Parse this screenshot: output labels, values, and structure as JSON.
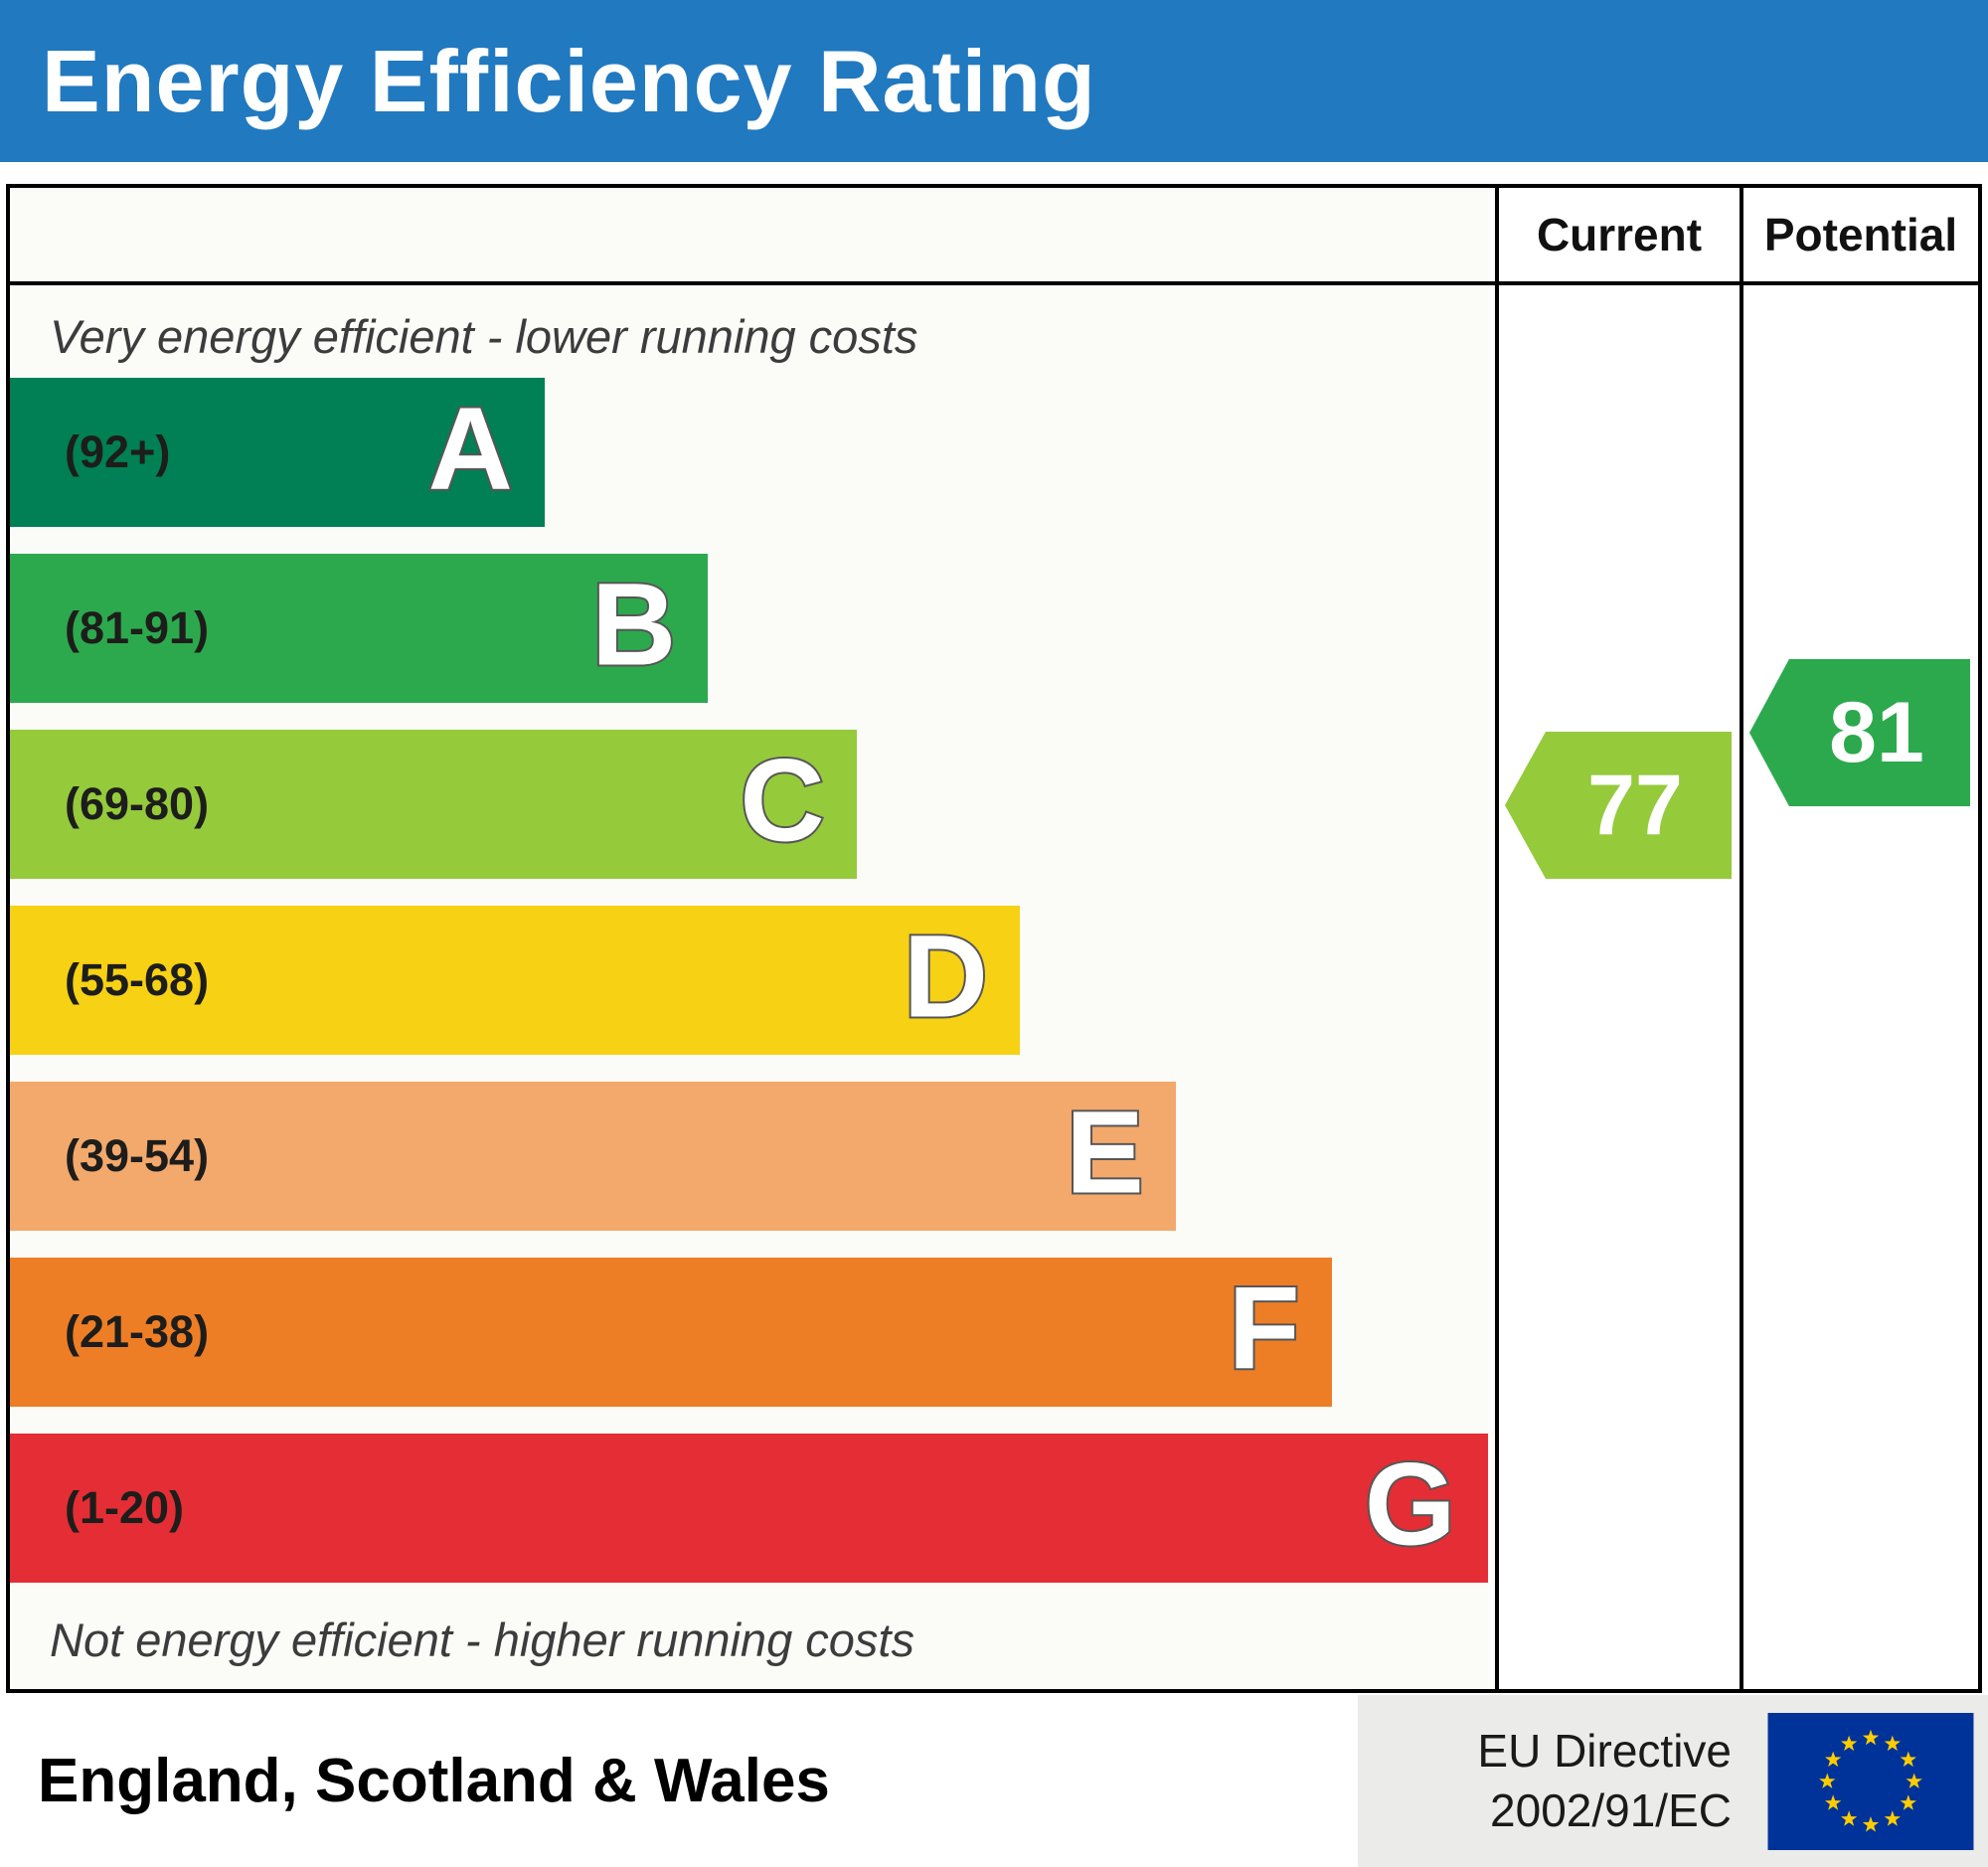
{
  "header": {
    "title": "Energy Efficiency Rating"
  },
  "table": {
    "current_label": "Current",
    "potential_label": "Potential",
    "top_note": "Very energy efficient - lower running costs",
    "bottom_note": "Not energy efficient - higher running costs"
  },
  "bands": [
    {
      "letter": "A",
      "range": "(92+)",
      "color": "#008054",
      "width_pct": 36
    },
    {
      "letter": "B",
      "range": "(81-91)",
      "color": "#2ca94d",
      "width_pct": 47
    },
    {
      "letter": "C",
      "range": "(69-80)",
      "color": "#95ca3b",
      "width_pct": 57
    },
    {
      "letter": "D",
      "range": "(55-68)",
      "color": "#f7d113",
      "width_pct": 68
    },
    {
      "letter": "E",
      "range": "(39-54)",
      "color": "#f3a96c",
      "width_pct": 78.5
    },
    {
      "letter": "F",
      "range": "(21-38)",
      "color": "#ee7e25",
      "width_pct": 89
    },
    {
      "letter": "G",
      "range": "(1-20)",
      "color": "#e42d34",
      "width_pct": 99.5
    }
  ],
  "ratings": {
    "current": {
      "value": "77",
      "band": "C",
      "color": "#95ca3b"
    },
    "potential": {
      "value": "81",
      "band": "B",
      "color": "#2ca94d"
    }
  },
  "footer": {
    "region": "England, Scotland & Wales",
    "directive_line1": "EU Directive",
    "directive_line2": "2002/91/EC",
    "flag_blue": "#003399",
    "flag_star_yellow": "#ffcc00"
  },
  "chart_data": {
    "type": "bar",
    "title": "Energy Efficiency Rating",
    "categories": [
      "A",
      "B",
      "C",
      "D",
      "E",
      "F",
      "G"
    ],
    "band_ranges": [
      "92+",
      "81-91",
      "69-80",
      "55-68",
      "39-54",
      "21-38",
      "1-20"
    ],
    "band_colors": [
      "#008054",
      "#2ca94d",
      "#95ca3b",
      "#f7d113",
      "#f3a96c",
      "#ee7e25",
      "#e42d34"
    ],
    "bar_relative_lengths_pct": [
      36,
      47,
      57,
      68,
      78.5,
      89,
      99.5
    ],
    "series": [
      {
        "name": "Current",
        "values": [
          77
        ],
        "band": "C"
      },
      {
        "name": "Potential",
        "values": [
          81
        ],
        "band": "B"
      }
    ],
    "top_annotation": "Very energy efficient - lower running costs",
    "bottom_annotation": "Not energy efficient - higher running costs",
    "region": "England, Scotland & Wales",
    "directive": "EU Directive 2002/91/EC",
    "legend_position": "none",
    "grid": false
  }
}
